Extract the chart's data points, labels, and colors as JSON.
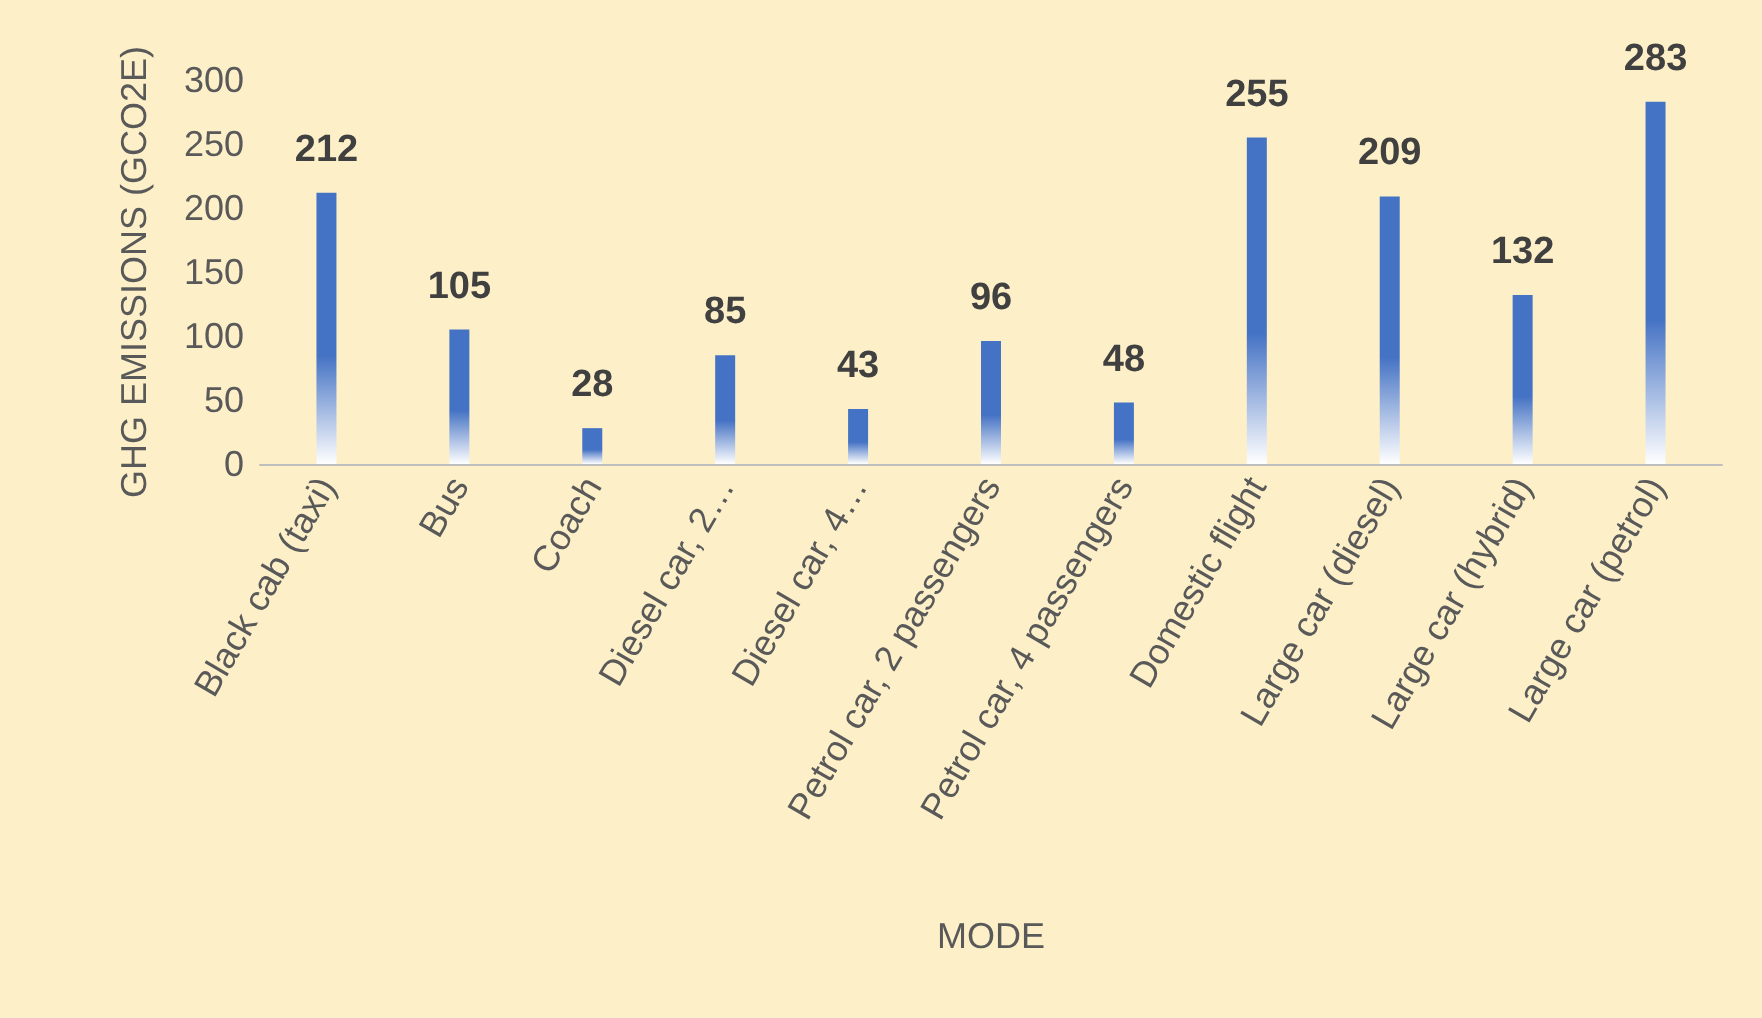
{
  "chart_data": {
    "type": "bar",
    "xlabel": "MODE",
    "ylabel": "GHG EMISSIONS (GCO2E)",
    "categories": [
      "Black cab (taxi)",
      "Bus",
      "Coach",
      "Diesel car, 2…",
      "Diesel car, 4…",
      "Petrol car, 2 passengers",
      "Petrol car, 4 passengers",
      "Domestic flight",
      "Large car (diesel)",
      "Large car (hybrid)",
      "Large car (petrol)"
    ],
    "values": [
      212,
      105,
      28,
      85,
      43,
      96,
      48,
      255,
      209,
      132,
      283
    ],
    "color": "#4472c4",
    "ylim": [
      0,
      300
    ],
    "yticks": [
      0,
      50,
      100,
      150,
      200,
      250,
      300
    ],
    "grid": false,
    "data_labels": true
  }
}
